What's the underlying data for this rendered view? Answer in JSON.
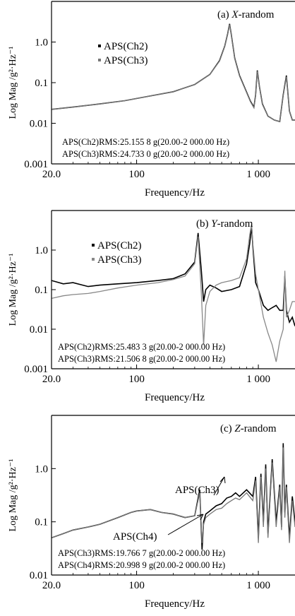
{
  "chart_data": [
    {
      "type": "line",
      "panel": "(a)",
      "title_prefix": "(a) ",
      "title_axis": "X",
      "title_suffix": "-random",
      "xlabel": "Frequency/Hz",
      "ylabel": "Log Mag /g²·Hz⁻¹",
      "xscale": "log",
      "yscale": "log",
      "xlim": [
        20,
        2000
      ],
      "ylim": [
        0.001,
        10
      ],
      "xticks": [
        "20.0",
        "100",
        "1 000"
      ],
      "yticks": [
        "0.001",
        "0.01",
        "0.1",
        "1.0"
      ],
      "legend": [
        "APS(Ch2)",
        "APS(Ch3)"
      ],
      "legend_position": "upper-left",
      "annotations": [
        "APS(Ch2)RMS:25.155 8 g(20.00-2 000.00 Hz)",
        "APS(Ch3)RMS:24.733 0 g(20.00-2 000.00 Hz)"
      ],
      "series": [
        {
          "name": "APS(Ch2)",
          "color": "#000000",
          "x": [
            20,
            30,
            50,
            80,
            120,
            200,
            300,
            400,
            480,
            530,
            560,
            580,
            600,
            640,
            700,
            780,
            860,
            920,
            950,
            980,
            1020,
            1080,
            1200,
            1350,
            1500,
            1600,
            1700,
            1800,
            1900,
            2000
          ],
          "y": [
            0.022,
            0.025,
            0.03,
            0.036,
            0.045,
            0.06,
            0.09,
            0.16,
            0.35,
            0.8,
            1.6,
            2.8,
            1.5,
            0.4,
            0.15,
            0.07,
            0.035,
            0.025,
            0.05,
            0.2,
            0.08,
            0.03,
            0.015,
            0.012,
            0.011,
            0.05,
            0.15,
            0.02,
            0.012,
            0.012
          ]
        },
        {
          "name": "APS(Ch3)",
          "color": "#777777",
          "x": [
            20,
            30,
            50,
            80,
            120,
            200,
            300,
            400,
            480,
            530,
            560,
            580,
            600,
            640,
            700,
            780,
            860,
            920,
            950,
            980,
            1020,
            1080,
            1200,
            1350,
            1500,
            1600,
            1700,
            1800,
            1900,
            2000
          ],
          "y": [
            0.022,
            0.025,
            0.03,
            0.036,
            0.045,
            0.06,
            0.09,
            0.16,
            0.34,
            0.78,
            1.55,
            2.7,
            1.45,
            0.39,
            0.145,
            0.068,
            0.034,
            0.024,
            0.048,
            0.19,
            0.078,
            0.029,
            0.015,
            0.012,
            0.011,
            0.048,
            0.14,
            0.02,
            0.012,
            0.012
          ]
        }
      ]
    },
    {
      "type": "line",
      "panel": "(b)",
      "title_prefix": "(b) ",
      "title_axis": "Y",
      "title_suffix": "-random",
      "xlabel": "Frequency/Hz",
      "ylabel": "Log Mag /g²·Hz⁻¹",
      "xscale": "log",
      "yscale": "log",
      "xlim": [
        20,
        2000
      ],
      "ylim": [
        0.001,
        10
      ],
      "xticks": [
        "20.0",
        "100",
        "1 000"
      ],
      "yticks": [
        "0.001",
        "0.01",
        "0.1",
        "1.0"
      ],
      "legend": [
        "APS(Ch2)",
        "APS(Ch3)"
      ],
      "legend_position": "upper-left",
      "annotations": [
        "APS(Ch2)RMS:25.483 3 g(20.00-2 000.00 Hz)",
        "APS(Ch3)RMS:21.506 8 g(20.00-2 000.00 Hz)"
      ],
      "series": [
        {
          "name": "APS(Ch2)",
          "color": "#000000",
          "x": [
            20,
            25,
            30,
            40,
            50,
            70,
            100,
            150,
            200,
            250,
            300,
            320,
            340,
            355,
            370,
            400,
            450,
            500,
            600,
            700,
            800,
            850,
            880,
            900,
            950,
            1000,
            1100,
            1200,
            1300,
            1400,
            1500,
            1600,
            1650,
            1700,
            1800,
            1900,
            2000
          ],
          "y": [
            0.17,
            0.14,
            0.15,
            0.12,
            0.13,
            0.14,
            0.15,
            0.17,
            0.19,
            0.25,
            0.5,
            2.7,
            0.3,
            0.05,
            0.1,
            0.13,
            0.11,
            0.09,
            0.1,
            0.12,
            0.45,
            1.5,
            4.0,
            1.3,
            0.15,
            0.1,
            0.04,
            0.03,
            0.035,
            0.04,
            0.03,
            0.03,
            0.22,
            0.03,
            0.015,
            0.02,
            0.012
          ]
        },
        {
          "name": "APS(Ch3)",
          "color": "#888888",
          "x": [
            20,
            25,
            30,
            40,
            50,
            70,
            100,
            150,
            200,
            250,
            300,
            320,
            340,
            355,
            370,
            400,
            450,
            500,
            600,
            700,
            800,
            850,
            880,
            900,
            950,
            1000,
            1100,
            1200,
            1300,
            1400,
            1500,
            1600,
            1650,
            1700,
            1800,
            1900,
            2000
          ],
          "y": [
            0.06,
            0.07,
            0.075,
            0.08,
            0.09,
            0.11,
            0.13,
            0.15,
            0.18,
            0.22,
            0.45,
            2.2,
            0.08,
            0.004,
            0.04,
            0.09,
            0.13,
            0.15,
            0.17,
            0.2,
            0.6,
            2.5,
            4.5,
            1.5,
            0.25,
            0.1,
            0.02,
            0.008,
            0.004,
            0.0015,
            0.005,
            0.01,
            0.3,
            0.02,
            0.03,
            0.05,
            0.05
          ]
        }
      ]
    },
    {
      "type": "line",
      "panel": "(c)",
      "title_prefix": "(c) ",
      "title_axis": "Z",
      "title_suffix": "-random",
      "xlabel": "Frequency/Hz",
      "ylabel": "Log Mag /g²·Hz⁻¹",
      "xscale": "log",
      "yscale": "log",
      "xlim": [
        20,
        2000
      ],
      "ylim": [
        0.01,
        10
      ],
      "xticks": [
        "20.0",
        "100",
        "1 000"
      ],
      "yticks": [
        "0.01",
        "0.1",
        "1.0"
      ],
      "legend": [],
      "callouts": [
        "APS(Ch3)",
        "APS(Ch4)"
      ],
      "annotations": [
        "APS(Ch3)RMS:19.766 7 g(20.00-2 000.00 Hz)",
        "APS(Ch4)RMS:20.998 9 g(20.00-2 000.00 Hz)"
      ],
      "series": [
        {
          "name": "APS(Ch3)",
          "color": "#000000",
          "x": [
            20,
            25,
            30,
            40,
            50,
            70,
            90,
            100,
            130,
            160,
            200,
            250,
            300,
            330,
            345,
            355,
            370,
            400,
            450,
            500,
            550,
            600,
            650,
            700,
            800,
            900,
            950,
            1000,
            1050,
            1100,
            1150,
            1200,
            1300,
            1400,
            1500,
            1550,
            1600,
            1650,
            1700,
            1800,
            1900,
            2000
          ],
          "y": [
            0.05,
            0.06,
            0.07,
            0.08,
            0.09,
            0.12,
            0.15,
            0.16,
            0.17,
            0.15,
            0.14,
            0.12,
            0.13,
            0.4,
            0.03,
            0.1,
            0.14,
            0.16,
            0.2,
            0.22,
            0.28,
            0.3,
            0.35,
            0.3,
            0.4,
            0.3,
            0.7,
            0.05,
            0.8,
            0.1,
            1.2,
            0.06,
            1.5,
            0.1,
            0.5,
            0.08,
            3.0,
            0.15,
            0.5,
            0.05,
            0.3,
            0.1
          ]
        },
        {
          "name": "APS(Ch4)",
          "color": "#777777",
          "x": [
            20,
            25,
            30,
            40,
            50,
            70,
            90,
            100,
            130,
            160,
            200,
            250,
            300,
            330,
            345,
            355,
            370,
            400,
            450,
            500,
            550,
            600,
            650,
            700,
            800,
            900,
            950,
            1000,
            1050,
            1100,
            1150,
            1200,
            1300,
            1400,
            1500,
            1550,
            1600,
            1650,
            1700,
            1800,
            1900,
            2000
          ],
          "y": [
            0.05,
            0.06,
            0.07,
            0.08,
            0.09,
            0.12,
            0.15,
            0.16,
            0.17,
            0.15,
            0.14,
            0.12,
            0.13,
            0.35,
            0.04,
            0.09,
            0.12,
            0.14,
            0.17,
            0.18,
            0.22,
            0.25,
            0.28,
            0.26,
            0.35,
            0.25,
            0.6,
            0.04,
            0.7,
            0.08,
            1.0,
            0.05,
            1.3,
            0.08,
            0.45,
            0.07,
            2.5,
            0.12,
            0.45,
            0.04,
            0.25,
            0.08
          ]
        }
      ]
    }
  ]
}
